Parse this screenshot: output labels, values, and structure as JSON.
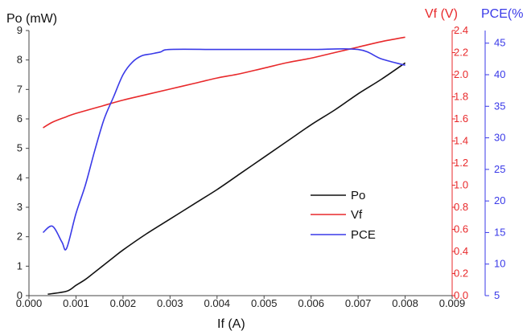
{
  "chart_data": {
    "type": "line",
    "title": "",
    "xlabel": "If (A)",
    "y_left_label": "Po (mW)",
    "y_right1_label": "Vf (V)",
    "y_right2_label": "PCE(%",
    "xlim": [
      0,
      0.009
    ],
    "ylim_left": [
      0,
      9
    ],
    "ylim_right1": [
      0,
      2.4
    ],
    "ylim_right2": [
      5,
      47
    ],
    "x_ticks": [
      "0.000",
      "0.001",
      "0.002",
      "0.003",
      "0.004",
      "0.005",
      "0.006",
      "0.007",
      "0.008",
      "0.009"
    ],
    "y_left_ticks": [
      "0",
      "1",
      "2",
      "3",
      "4",
      "5",
      "6",
      "7",
      "8",
      "9"
    ],
    "y_right1_ticks": [
      "0.0",
      "0.2",
      "0.4",
      "0.6",
      "0.8",
      "1.0",
      "1.2",
      "1.4",
      "1.6",
      "1.8",
      "2.0",
      "2.2",
      "2.4"
    ],
    "y_right2_ticks": [
      "5",
      "10",
      "15",
      "20",
      "25",
      "30",
      "35",
      "40",
      "45"
    ],
    "legend_position": "center-right",
    "colors": {
      "Po": "#111111",
      "Vf": "#e8292b",
      "PCE": "#3a3ae8"
    },
    "series": [
      {
        "name": "Po",
        "axis": "left",
        "x": [
          0.0004,
          0.0008,
          0.001,
          0.0012,
          0.0014,
          0.0016,
          0.0018,
          0.002,
          0.0025,
          0.003,
          0.0035,
          0.004,
          0.0045,
          0.005,
          0.0055,
          0.006,
          0.0065,
          0.007,
          0.0075,
          0.008
        ],
        "values": [
          0.05,
          0.15,
          0.35,
          0.55,
          0.8,
          1.05,
          1.3,
          1.55,
          2.1,
          2.6,
          3.1,
          3.6,
          4.15,
          4.7,
          5.25,
          5.8,
          6.3,
          6.85,
          7.35,
          7.9
        ]
      },
      {
        "name": "Vf",
        "axis": "right1",
        "x": [
          0.0003,
          0.0005,
          0.0008,
          0.001,
          0.0015,
          0.002,
          0.0025,
          0.003,
          0.0035,
          0.004,
          0.0045,
          0.005,
          0.0055,
          0.006,
          0.0065,
          0.007,
          0.0075,
          0.008
        ],
        "values": [
          1.52,
          1.57,
          1.62,
          1.65,
          1.71,
          1.77,
          1.82,
          1.87,
          1.92,
          1.97,
          2.01,
          2.06,
          2.11,
          2.15,
          2.2,
          2.25,
          2.3,
          2.34
        ]
      },
      {
        "name": "PCE",
        "axis": "right2",
        "x": [
          0.0003,
          0.0005,
          0.0007,
          0.0008,
          0.001,
          0.0012,
          0.0014,
          0.0016,
          0.0018,
          0.002,
          0.0022,
          0.0024,
          0.0026,
          0.0028,
          0.003,
          0.004,
          0.005,
          0.006,
          0.007,
          0.0075,
          0.008
        ],
        "values": [
          15.0,
          16.0,
          13.5,
          12.5,
          18.0,
          22.5,
          28.0,
          33.0,
          36.5,
          40.0,
          42.0,
          43.0,
          43.3,
          43.6,
          44.0,
          44.0,
          44.0,
          44.0,
          44.0,
          42.5,
          41.5
        ]
      }
    ]
  }
}
